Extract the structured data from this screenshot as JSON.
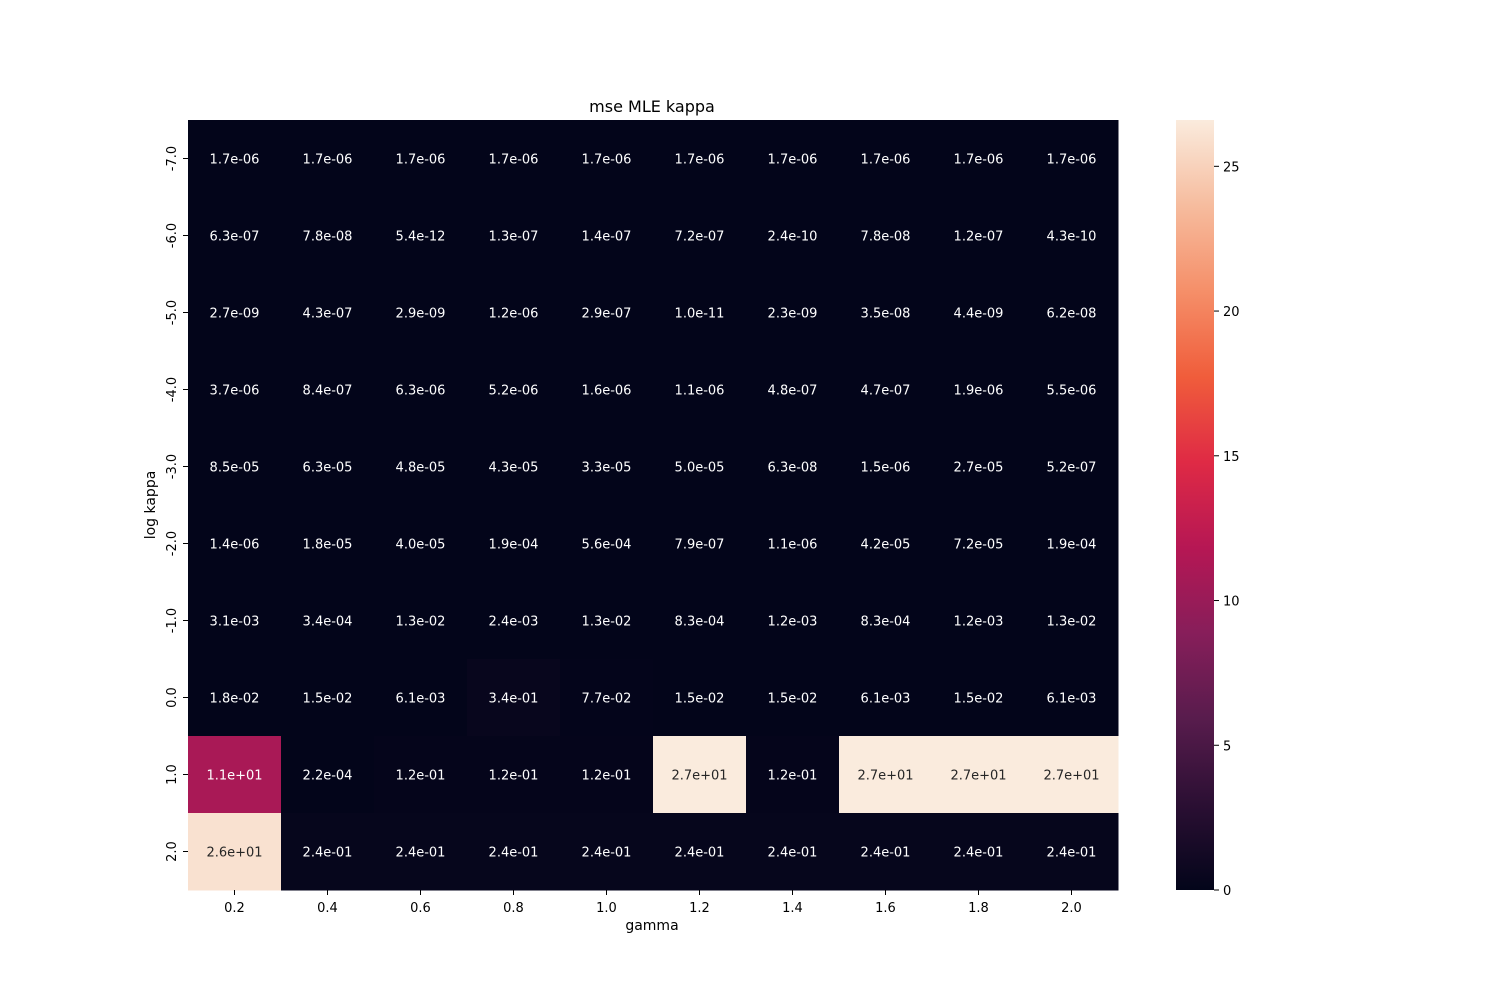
{
  "chart_data": {
    "type": "heatmap",
    "title": "mse MLE  kappa",
    "xlabel": "gamma",
    "ylabel": "log kappa",
    "x": [
      "0.2",
      "0.4",
      "0.6",
      "0.8",
      "1.0",
      "1.2",
      "1.4",
      "1.6",
      "1.8",
      "2.0"
    ],
    "y": [
      "-7.0",
      "-6.0",
      "-5.0",
      "-4.0",
      "-3.0",
      "-2.0",
      "-1.0",
      "0.0",
      "1.0",
      "2.0"
    ],
    "values": [
      [
        1.7e-06,
        1.7e-06,
        1.7e-06,
        1.7e-06,
        1.7e-06,
        1.7e-06,
        1.7e-06,
        1.7e-06,
        1.7e-06,
        1.7e-06
      ],
      [
        6.3e-07,
        7.8e-08,
        5.4e-12,
        1.3e-07,
        1.4e-07,
        7.2e-07,
        2.4e-10,
        7.8e-08,
        1.2e-07,
        4.3e-10
      ],
      [
        2.7e-09,
        4.3e-07,
        2.9e-09,
        1.2e-06,
        2.9e-07,
        1e-11,
        2.3e-09,
        3.5e-08,
        4.4e-09,
        6.2e-08
      ],
      [
        3.7e-06,
        8.4e-07,
        6.3e-06,
        5.2e-06,
        1.6e-06,
        1.1e-06,
        4.8e-07,
        4.7e-07,
        1.9e-06,
        5.5e-06
      ],
      [
        8.5e-05,
        6.3e-05,
        4.8e-05,
        4.3e-05,
        3.3e-05,
        5e-05,
        6.3e-08,
        1.5e-06,
        2.7e-05,
        5.2e-07
      ],
      [
        1.4e-06,
        1.8e-05,
        4e-05,
        0.00019,
        0.00056,
        7.9e-07,
        1.1e-06,
        4.2e-05,
        7.2e-05,
        0.00019
      ],
      [
        0.0031,
        0.00034,
        0.013,
        0.0024,
        0.013,
        0.00083,
        0.0012,
        0.00083,
        0.0012,
        0.013
      ],
      [
        0.018,
        0.015,
        0.0061,
        0.34,
        0.077,
        0.015,
        0.015,
        0.0061,
        0.015,
        0.0061
      ],
      [
        11.0,
        0.00022,
        0.12,
        0.12,
        0.12,
        27.0,
        0.12,
        27.0,
        27.0,
        27.0
      ],
      [
        26.0,
        0.24,
        0.24,
        0.24,
        0.24,
        0.24,
        0.24,
        0.24,
        0.24,
        0.24
      ]
    ],
    "labels": [
      [
        "1.7e-06",
        "1.7e-06",
        "1.7e-06",
        "1.7e-06",
        "1.7e-06",
        "1.7e-06",
        "1.7e-06",
        "1.7e-06",
        "1.7e-06",
        "1.7e-06"
      ],
      [
        "6.3e-07",
        "7.8e-08",
        "5.4e-12",
        "1.3e-07",
        "1.4e-07",
        "7.2e-07",
        "2.4e-10",
        "7.8e-08",
        "1.2e-07",
        "4.3e-10"
      ],
      [
        "2.7e-09",
        "4.3e-07",
        "2.9e-09",
        "1.2e-06",
        "2.9e-07",
        "1.0e-11",
        "2.3e-09",
        "3.5e-08",
        "4.4e-09",
        "6.2e-08"
      ],
      [
        "3.7e-06",
        "8.4e-07",
        "6.3e-06",
        "5.2e-06",
        "1.6e-06",
        "1.1e-06",
        "4.8e-07",
        "4.7e-07",
        "1.9e-06",
        "5.5e-06"
      ],
      [
        "8.5e-05",
        "6.3e-05",
        "4.8e-05",
        "4.3e-05",
        "3.3e-05",
        "5.0e-05",
        "6.3e-08",
        "1.5e-06",
        "2.7e-05",
        "5.2e-07"
      ],
      [
        "1.4e-06",
        "1.8e-05",
        "4.0e-05",
        "1.9e-04",
        "5.6e-04",
        "7.9e-07",
        "1.1e-06",
        "4.2e-05",
        "7.2e-05",
        "1.9e-04"
      ],
      [
        "3.1e-03",
        "3.4e-04",
        "1.3e-02",
        "2.4e-03",
        "1.3e-02",
        "8.3e-04",
        "1.2e-03",
        "8.3e-04",
        "1.2e-03",
        "1.3e-02"
      ],
      [
        "1.8e-02",
        "1.5e-02",
        "6.1e-03",
        "3.4e-01",
        "7.7e-02",
        "1.5e-02",
        "1.5e-02",
        "6.1e-03",
        "1.5e-02",
        "6.1e-03"
      ],
      [
        "1.1e+01",
        "2.2e-04",
        "1.2e-01",
        "1.2e-01",
        "1.2e-01",
        "2.7e+01",
        "1.2e-01",
        "2.7e+01",
        "2.7e+01",
        "2.7e+01"
      ],
      [
        "2.6e+01",
        "2.4e-01",
        "2.4e-01",
        "2.4e-01",
        "2.4e-01",
        "2.4e-01",
        "2.4e-01",
        "2.4e-01",
        "2.4e-01",
        "2.4e-01"
      ]
    ],
    "colorbar": {
      "min": 0,
      "max": 26.6,
      "ticks": [
        0,
        5,
        10,
        15,
        20,
        25
      ],
      "colormap": "rocket",
      "colormap_stops": [
        "#03051a",
        "#2b0f33",
        "#581c4d",
        "#871e5a",
        "#b61754",
        "#df2a45",
        "#f05d3b",
        "#f58f69",
        "#f6bc9e",
        "#faebdd"
      ]
    },
    "grid": false
  }
}
